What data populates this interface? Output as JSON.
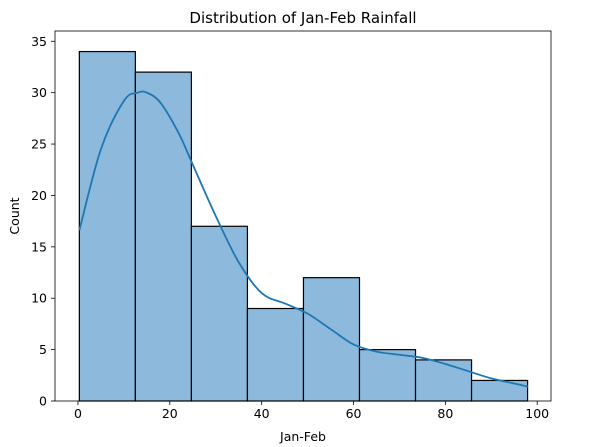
{
  "chart_data": {
    "type": "bar",
    "title": "Distribution of Jan-Feb Rainfall",
    "xlabel": "Jan-Feb",
    "ylabel": "Count",
    "xlim": [
      -5,
      103
    ],
    "ylim": [
      0,
      36
    ],
    "xticks": [
      0,
      20,
      40,
      60,
      80,
      100
    ],
    "yticks": [
      0,
      5,
      10,
      15,
      20,
      25,
      30,
      35
    ],
    "grid": false,
    "bins": [
      {
        "start": 0.3,
        "end": 12.5,
        "count": 34
      },
      {
        "start": 12.5,
        "end": 24.7,
        "count": 32
      },
      {
        "start": 24.7,
        "end": 36.9,
        "count": 17
      },
      {
        "start": 36.9,
        "end": 49.1,
        "count": 9
      },
      {
        "start": 49.1,
        "end": 61.3,
        "count": 12
      },
      {
        "start": 61.3,
        "end": 73.5,
        "count": 5
      },
      {
        "start": 73.5,
        "end": 85.7,
        "count": 4
      },
      {
        "start": 85.7,
        "end": 97.9,
        "count": 2
      }
    ],
    "kde": {
      "x": [
        0.3,
        5,
        10,
        13,
        15,
        18,
        22,
        25,
        30,
        35,
        40,
        45,
        50,
        55,
        60,
        65,
        70,
        75,
        80,
        85,
        90,
        95,
        98
      ],
      "y": [
        16.6,
        24.5,
        29.2,
        30.0,
        30.0,
        29.0,
        26.0,
        23.0,
        18.0,
        13.5,
        10.5,
        9.5,
        8.5,
        7.0,
        5.5,
        4.8,
        4.5,
        4.2,
        3.6,
        2.9,
        2.2,
        1.7,
        1.4
      ]
    },
    "bar_color": "#8DB9DC",
    "edge_color": "#000000",
    "kde_color": "#1F77B4"
  }
}
